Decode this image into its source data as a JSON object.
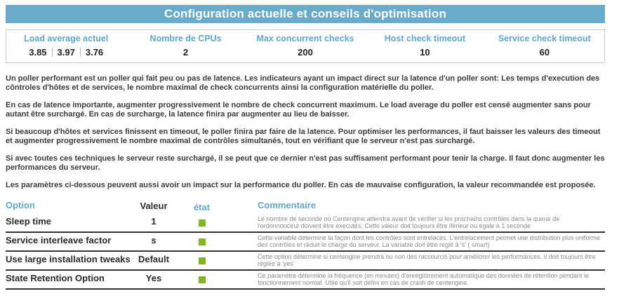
{
  "title": "Configuration actuelle et conseils d'optimisation",
  "colors": {
    "accent_blue": "#6aabcc",
    "label_blue": "#5ca9cf",
    "status_green": "#80b71f"
  },
  "stats": {
    "headers": [
      "Load average actuel",
      "Nombre de CPUs",
      "Max concurrent checks",
      "Host check timeout",
      "Service check timeout"
    ],
    "load_average": [
      "3.85",
      "3.97",
      "3.76"
    ],
    "cpu_count": "2",
    "max_concurrent_checks": "200",
    "host_check_timeout": "10",
    "service_check_timeout": "60"
  },
  "paragraphs": [
    "Un poller performant est un poller qui fait peu ou pas de latence. Les indicateurs ayant un impact direct sur la latence d'un poller sont: Les temps d'execution des côntroles d'hôtes et de services, le nombre maximal de check concurrents ainsi la configuration matérielle du poller.",
    "En cas de latence importante, augmenter progressivement le nombre de check concurrent maximum. Le load average du poller est censé augmenter sans pour autant être surchargé. En cas de surcharge, la latence finira par augmenter au lieu de baisser.",
    "Si beaucoup d'hôtes et services finissent en timeout, le poller finira par faire de la latence. Pour optimiser les performances, il faut baisser les valeurs des timeout et augmenter progressivement le nombre maximal de contrôles simultanés, tout en vérifiant que le serveur n'est pas surchargé.",
    "Si avec toutes ces techniques le serveur reste surchargé, il se peut que ce dernier n'est pas suffisament performant pour tenir la charge. Il faut donc augmenter les performances du serveur.",
    "Les paramètres ci-dessous peuvent aussi avoir un impact sur la performance du poller. En cas de mauvaise configuration, la valeur recommandée est proposée."
  ],
  "table": {
    "headers": {
      "option": "Option",
      "valeur": "Valeur",
      "etat": "état",
      "commentaire": "Commentaire"
    },
    "rows": [
      {
        "option": "Sleep time",
        "valeur": "1",
        "etat": "ok",
        "commentaire": "Le nombre de seconde où Centengine attendra avant de vérifier si les prochains contrôles dans la queue de l'ordonnonceur doivent être executés. Cette valeur doit toujours être iférieur ou égale à 1 seconde"
      },
      {
        "option": "Service interleave factor",
        "valeur": "s",
        "etat": "ok",
        "commentaire": "Cette variable determine la façon dont les contrôles sont entrelacés. L'entrelacement permet une distribution plus uniforme des contrôles et réduit le charge du serveur. La variable doit être reglé à 's' ( smart)"
      },
      {
        "option": "Use large installation tweaks",
        "valeur": "Default",
        "etat": "ok",
        "commentaire": "Cette option détermine si centengine prendra ou non des raccourcis pour améliorer les performances. Il doit toujours être réglée à 'yes'"
      },
      {
        "option": "State Retention Option",
        "valeur": "Yes",
        "etat": "ok",
        "commentaire": "Ce paramètre détermine la fréquence (en minutes) d'enregistrement automatique des données de rétention pendant le fonctionnement normal. Utile qu'il soit défini en cas de crash de centengine."
      }
    ]
  }
}
